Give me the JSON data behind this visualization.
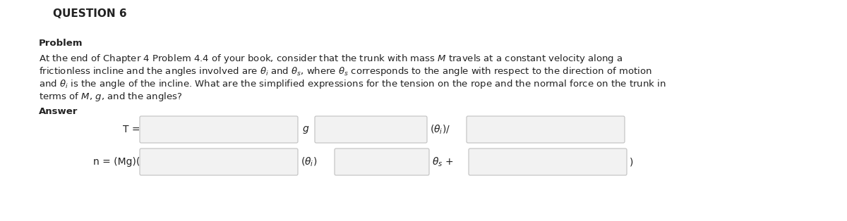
{
  "title": "QUESTION 6",
  "section_problem": "Problem",
  "section_answer": "Answer",
  "line1": "At the end of Chapter 4 Problem 4.4 of your book, consider that the trunk with mass $\\mathit{M}$ travels at a constant velocity along a",
  "line2": "frictionless incline and the angles involved are $\\theta_i$ and $\\theta_s$, where $\\theta_s$ corresponds to the angle with respect to the direction of motion",
  "line3": "and $\\theta_i$ is the angle of the incline. What are the simplified expressions for the tension on the rope and the normal force on the trunk in",
  "line4": "terms of $\\mathit{M}$, $\\mathit{g}$, and the angles?",
  "bg_color": "#ffffff",
  "text_color": "#222222",
  "box_facecolor": "#f5f5f5",
  "box_edgecolor": "#cccccc",
  "title_fontsize": 11,
  "body_fontsize": 9.5,
  "answer_fontsize": 10
}
